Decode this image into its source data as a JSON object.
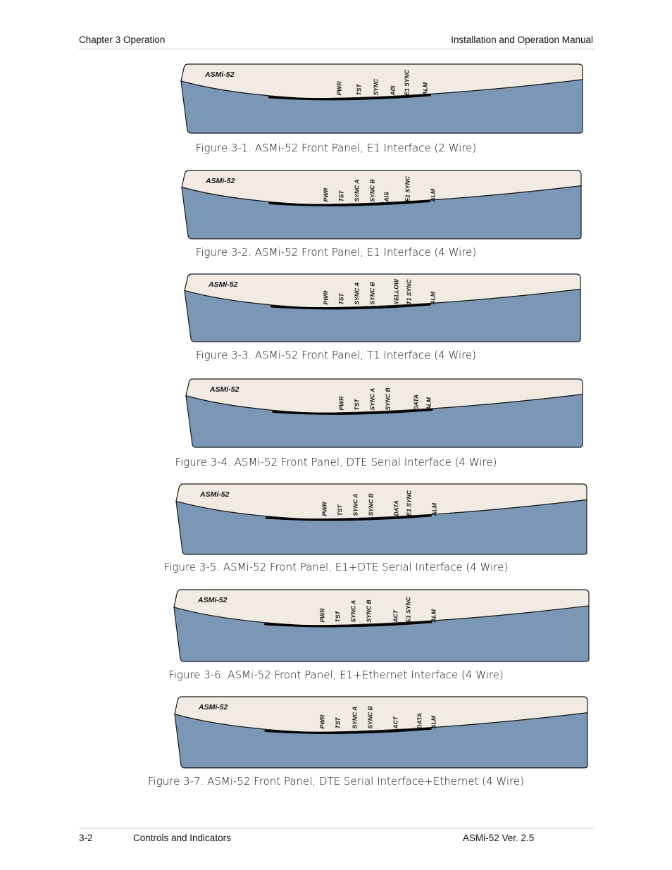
{
  "header": {
    "left": "Chapter 3  Operation",
    "right": "Installation and Operation Manual"
  },
  "footer": {
    "page": "3-2",
    "section": "Controls and Indicators",
    "version": "ASMi-52 Ver. 2.5"
  },
  "colors": {
    "panel_top": "#f1ebe4",
    "panel_bottom": "#7a97b5",
    "outline": "#1a1a1a"
  },
  "figures": [
    {
      "caption": "Figure 3-1.  ASMi-52 Front Panel, E1 Interface (2 Wire)",
      "model": "ASMi-52",
      "leds": [
        "PWR",
        "TST",
        "SYNC",
        "AIS",
        "E1 SYNC",
        "ALM"
      ]
    },
    {
      "caption": "Figure 3-2.  ASMi-52 Front Panel, E1 Interface (4 Wire)",
      "model": "ASMi-52",
      "leds": [
        "PWR",
        "TST",
        "SYNC A",
        "SYNC B",
        "AIS",
        "E1 SYNC",
        "ALM"
      ]
    },
    {
      "caption": "Figure 3-3.  ASMi-52 Front Panel, T1 Interface (4 Wire)",
      "model": "ASMi-52",
      "leds": [
        "PWR",
        "TST",
        "SYNC A",
        "SYNC B",
        "YELLOW",
        "T1 SYNC",
        "ALM"
      ]
    },
    {
      "caption": "Figure 3-4.  ASMi-52 Front Panel, DTE Serial Interface (4 Wire)",
      "model": "ASMi-52",
      "leds": [
        "PWR",
        "TST",
        "SYNC A",
        "SYNC B",
        "DATA",
        "ALM"
      ]
    },
    {
      "caption": "Figure 3-5.  ASMi-52 Front Panel, E1+DTE Serial Interface (4 Wire)",
      "model": "ASMi-52",
      "leds": [
        "PWR",
        "TST",
        "SYNC A",
        "SYNC B",
        "DATA",
        "E1 SYNC",
        "ALM"
      ]
    },
    {
      "caption": "Figure 3-6.  ASMi-52 Front Panel, E1+Ethernet Interface (4 Wire)",
      "model": "ASMi-52",
      "leds": [
        "PWR",
        "TST",
        "SYNC A",
        "SYNC B",
        "ACT",
        "E1 SYNC",
        "ALM"
      ]
    },
    {
      "caption": "Figure 3-7.  ASMi-52 Front Panel, DTE Serial Interface+Ethernet (4 Wire)",
      "model": "ASMi-52",
      "leds": [
        "PWR",
        "TST",
        "SYNC A",
        "SYNC B",
        "ACT",
        "DATA",
        "ALM"
      ]
    }
  ]
}
